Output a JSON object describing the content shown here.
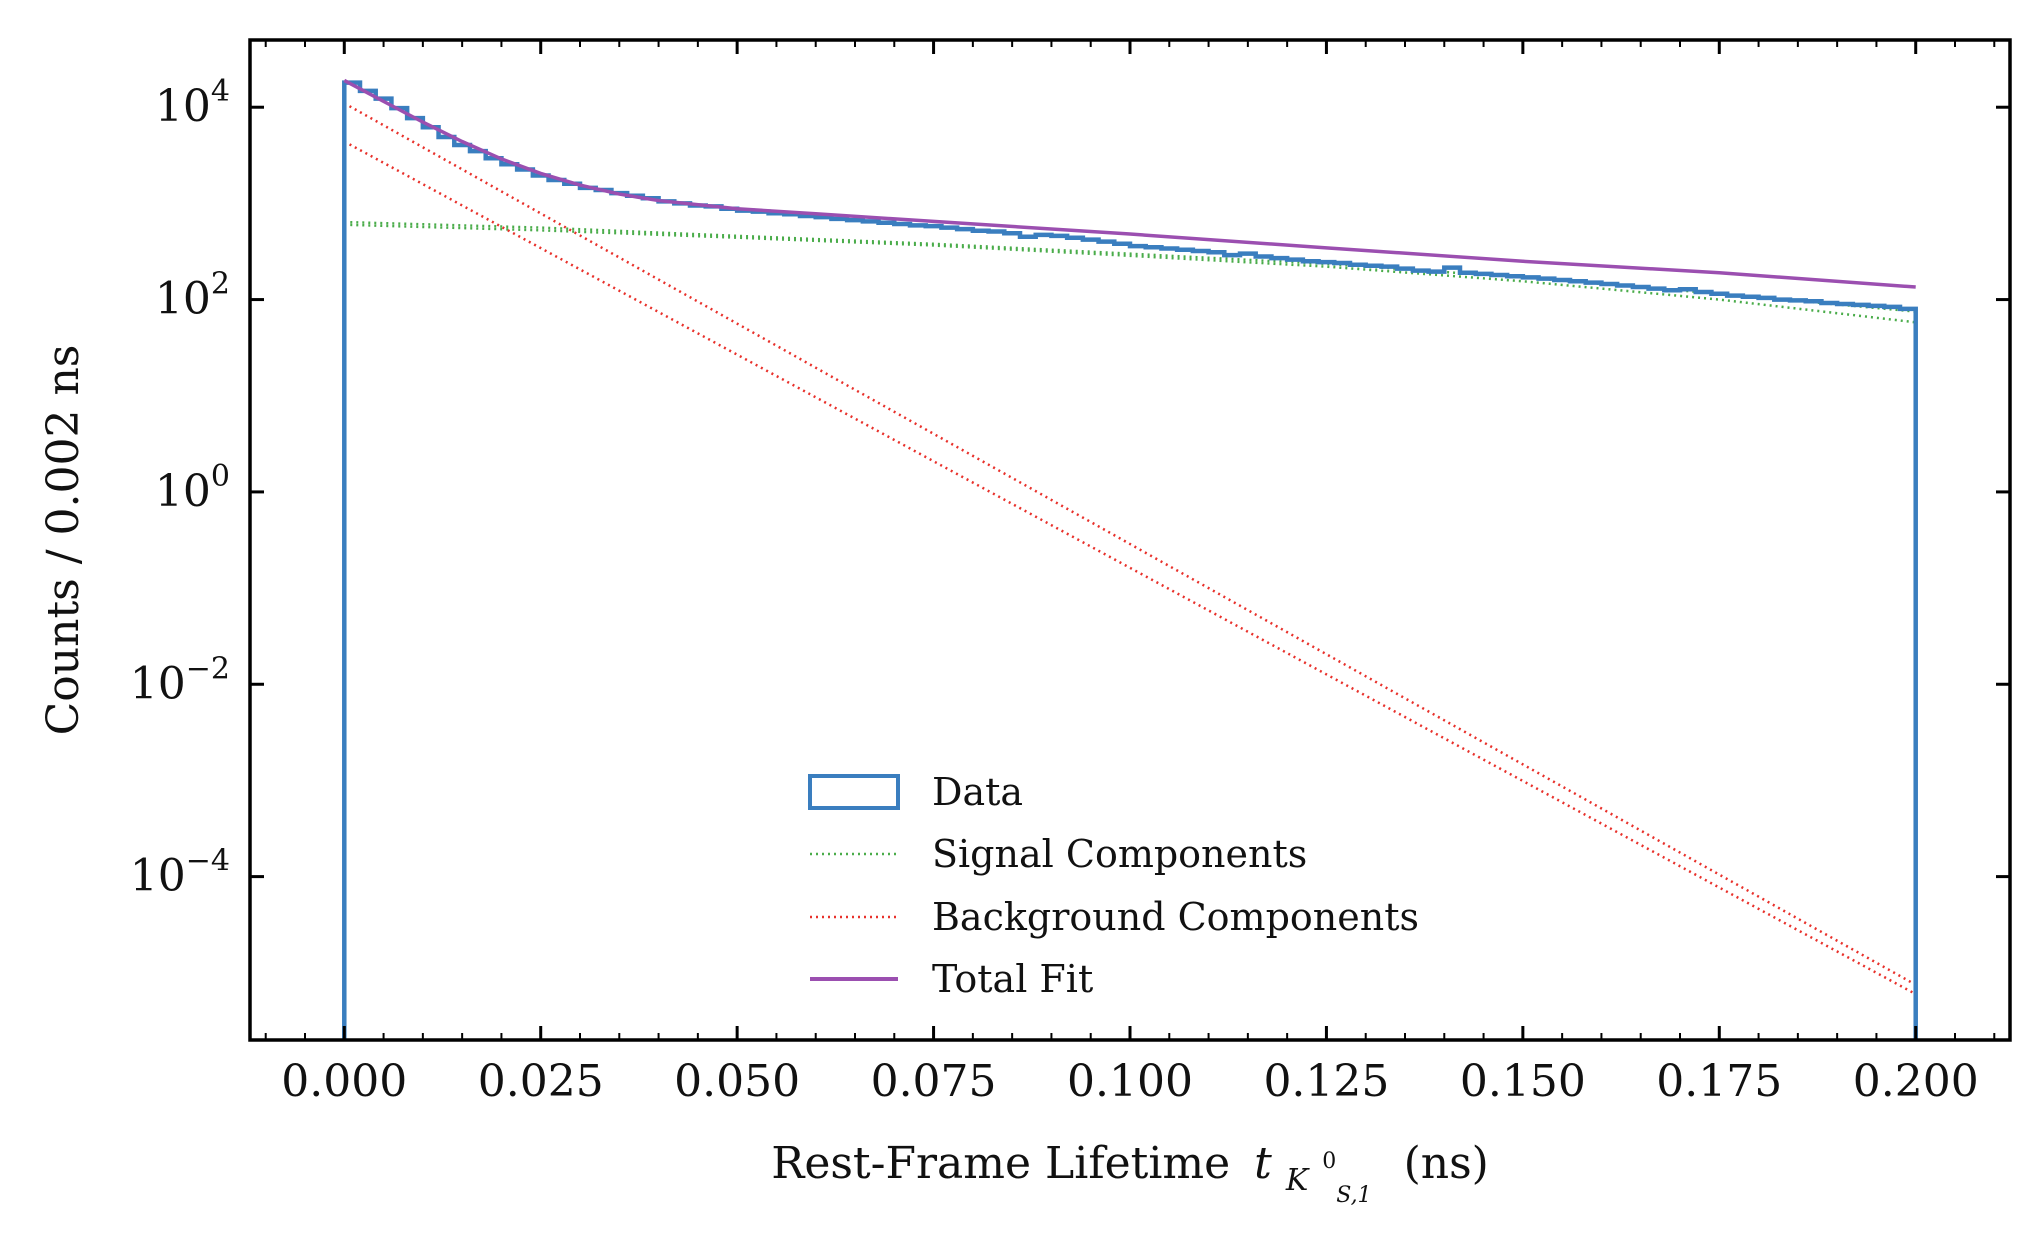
{
  "chart_data": {
    "type": "line",
    "title": "",
    "xlabel": "Rest-Frame Lifetime",
    "xlabel_symbol": "t",
    "xlabel_subscript": "K",
    "xlabel_subsub": "S,1",
    "xlabel_sup": "0",
    "xlabel_unit": "(ns)",
    "ylabel": "Counts / 0.002 ns",
    "yscale": "log",
    "xlim": [
      -0.012,
      0.212
    ],
    "ylim": [
      2e-06,
      50000
    ],
    "x_ticks": [
      {
        "value": 0.0,
        "label": "0.000"
      },
      {
        "value": 0.025,
        "label": "0.025"
      },
      {
        "value": 0.05,
        "label": "0.050"
      },
      {
        "value": 0.075,
        "label": "0.075"
      },
      {
        "value": 0.1,
        "label": "0.100"
      },
      {
        "value": 0.125,
        "label": "0.125"
      },
      {
        "value": 0.15,
        "label": "0.150"
      },
      {
        "value": 0.175,
        "label": "0.175"
      },
      {
        "value": 0.2,
        "label": "0.200"
      }
    ],
    "y_ticks": [
      {
        "value": 10000,
        "base": "10",
        "exp": "4"
      },
      {
        "value": 100,
        "base": "10",
        "exp": "2"
      },
      {
        "value": 1,
        "base": "10",
        "exp": "0"
      },
      {
        "value": 0.01,
        "base": "10",
        "exp": "−2"
      },
      {
        "value": 0.0001,
        "base": "10",
        "exp": "−4"
      }
    ],
    "legend": {
      "placement": "lower-center",
      "entries": [
        {
          "label": "Data",
          "style": "step",
          "color": "#3a7ebf"
        },
        {
          "label": "Signal Components",
          "style": "dotted",
          "color": "#4aac4a"
        },
        {
          "label": "Background Components",
          "style": "dotted",
          "color": "#e8312b"
        },
        {
          "label": "Total Fit",
          "style": "solid",
          "color": "#9b4fb0"
        }
      ]
    },
    "series": [
      {
        "name": "Data",
        "kind": "histogram",
        "color": "#3a7ebf",
        "bin_width": 0.002,
        "x_start": 0.0,
        "values": [
          18000,
          14800,
          12300,
          9800,
          7700,
          6200,
          4900,
          4050,
          3500,
          2950,
          2550,
          2250,
          1950,
          1750,
          1600,
          1450,
          1380,
          1280,
          1200,
          1130,
          1050,
          1000,
          950,
          930,
          880,
          840,
          820,
          790,
          770,
          740,
          720,
          690,
          670,
          650,
          630,
          610,
          590,
          580,
          560,
          540,
          520,
          510,
          490,
          450,
          470,
          460,
          440,
          420,
          400,
          380,
          360,
          350,
          340,
          330,
          320,
          310,
          290,
          300,
          280,
          270,
          260,
          250,
          245,
          240,
          230,
          225,
          220,
          210,
          200,
          195,
          215,
          190,
          185,
          180,
          175,
          170,
          165,
          160,
          155,
          150,
          145,
          140,
          135,
          130,
          125,
          128,
          120,
          115,
          110,
          107,
          104,
          100,
          98,
          96,
          92,
          90,
          88,
          86,
          84,
          80
        ]
      },
      {
        "name": "Signal Components",
        "kind": "curve",
        "color": "#4aac4a",
        "dash": "dotted",
        "x": [
          0.0,
          0.025,
          0.05,
          0.075,
          0.1,
          0.125,
          0.15,
          0.175,
          0.2
        ],
        "values_a": [
          640,
          560,
          460,
          380,
          300,
          235,
          170,
          115,
          75
        ],
        "values_b": [
          600,
          525,
          440,
          365,
          285,
          220,
          155,
          100,
          58
        ]
      },
      {
        "name": "Background Components",
        "kind": "curve",
        "color": "#e8312b",
        "dash": "dotted",
        "x": [
          0.0,
          0.2
        ],
        "values_a": [
          11000,
          7.5e-06
        ],
        "values_b": [
          4400,
          6e-06
        ]
      },
      {
        "name": "Total Fit",
        "kind": "curve",
        "color": "#9b4fb0",
        "dash": "solid",
        "x": [
          0.0,
          0.005,
          0.01,
          0.015,
          0.02,
          0.025,
          0.03,
          0.035,
          0.04,
          0.05,
          0.06,
          0.075,
          0.1,
          0.125,
          0.15,
          0.175,
          0.2
        ],
        "values": [
          19000,
          11500,
          7000,
          4400,
          2900,
          2050,
          1550,
          1250,
          1070,
          880,
          780,
          650,
          480,
          345,
          250,
          190,
          135
        ]
      }
    ]
  }
}
